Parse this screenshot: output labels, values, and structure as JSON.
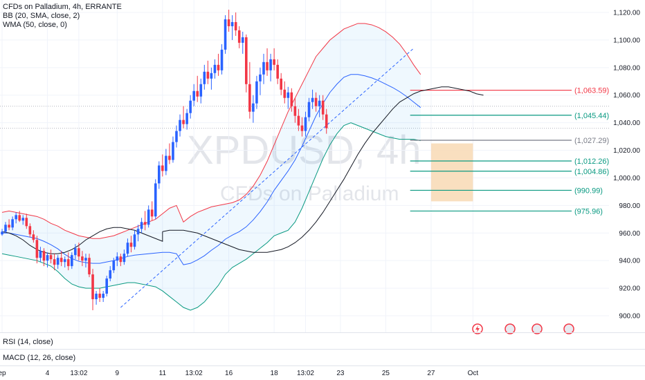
{
  "header": {
    "symbol_line": "CFDs on Palladium, 4h, ERRANTE",
    "bb_line": "BB (20, SMA, close, 2)",
    "wma_line": "WMA (50, close, 0)"
  },
  "watermark": {
    "symbol": "XPDUSD, 4h",
    "name": "CFDs on Palladium"
  },
  "panes": {
    "rsi_label": "RSI (14, close)",
    "macd_label": "MACD (12, 26, close)"
  },
  "colors": {
    "up": "#2962ff",
    "down": "#f23645",
    "bb_upper": "#f23645",
    "bb_lower": "#089981",
    "bb_basis": "#2962ff",
    "wma": "#131722",
    "fill": "#2196f3",
    "box": "#f8d9b4"
  },
  "chart_data": {
    "type": "candlestick",
    "title": "CFDs on Palladium, 4h, ERRANTE",
    "ylim": [
      895,
      1125
    ],
    "y_ticks": [
      900,
      920,
      940,
      960,
      980,
      1000,
      1020,
      1040,
      1060,
      1080,
      1100,
      1120
    ],
    "y_tick_labels": [
      "900.00",
      "920.00",
      "940.00",
      "960.00",
      "980.00",
      "1,000.00",
      "1,020.00",
      "1,040.00",
      "1,060.00",
      "1,080.00",
      "1,100.00",
      "1,120.00"
    ],
    "x_labels": [
      {
        "label": "ep",
        "bar": 0
      },
      {
        "label": "4",
        "bar": 13
      },
      {
        "label": "13:02",
        "bar": 22
      },
      {
        "label": "9",
        "bar": 33
      },
      {
        "label": "11",
        "bar": 46
      },
      {
        "label": "13:02",
        "bar": 55
      },
      {
        "label": "16",
        "bar": 65
      },
      {
        "label": "18",
        "bar": 78
      },
      {
        "label": "13:02",
        "bar": 87
      },
      {
        "label": "23",
        "bar": 97
      },
      {
        "label": "25",
        "bar": 110
      },
      {
        "label": "27",
        "bar": 123
      },
      {
        "label": "Oct",
        "bar": 135
      }
    ],
    "candles": [
      [
        959,
        963,
        958,
        961
      ],
      [
        961,
        968,
        960,
        966
      ],
      [
        966,
        970,
        962,
        964
      ],
      [
        964,
        972,
        962,
        970
      ],
      [
        970,
        975,
        967,
        973
      ],
      [
        973,
        976,
        968,
        969
      ],
      [
        969,
        973,
        966,
        971
      ],
      [
        971,
        974,
        963,
        965
      ],
      [
        965,
        967,
        957,
        959
      ],
      [
        959,
        962,
        953,
        955
      ],
      [
        955,
        958,
        938,
        942
      ],
      [
        942,
        950,
        939,
        947
      ],
      [
        947,
        949,
        936,
        940
      ],
      [
        940,
        946,
        935,
        944
      ],
      [
        944,
        948,
        938,
        941
      ],
      [
        941,
        945,
        933,
        937
      ],
      [
        937,
        944,
        934,
        942
      ],
      [
        942,
        947,
        936,
        939
      ],
      [
        939,
        943,
        935,
        941
      ],
      [
        941,
        946,
        933,
        936
      ],
      [
        936,
        946,
        934,
        944
      ],
      [
        944,
        952,
        941,
        949
      ],
      [
        949,
        953,
        940,
        943
      ],
      [
        943,
        947,
        936,
        940
      ],
      [
        940,
        945,
        935,
        942
      ],
      [
        942,
        945,
        928,
        930
      ],
      [
        930,
        934,
        904,
        912
      ],
      [
        912,
        918,
        908,
        916
      ],
      [
        916,
        920,
        910,
        913
      ],
      [
        913,
        918,
        910,
        916
      ],
      [
        916,
        929,
        914,
        927
      ],
      [
        927,
        936,
        925,
        933
      ],
      [
        933,
        942,
        931,
        940
      ],
      [
        940,
        946,
        936,
        943
      ],
      [
        943,
        945,
        936,
        939
      ],
      [
        939,
        948,
        937,
        945
      ],
      [
        945,
        956,
        943,
        953
      ],
      [
        953,
        958,
        946,
        950
      ],
      [
        950,
        962,
        948,
        959
      ],
      [
        959,
        966,
        954,
        963
      ],
      [
        963,
        971,
        960,
        968
      ],
      [
        968,
        976,
        962,
        966
      ],
      [
        966,
        980,
        964,
        977
      ],
      [
        977,
        983,
        969,
        972
      ],
      [
        972,
        999,
        970,
        996
      ],
      [
        996,
        1012,
        992,
        1009
      ],
      [
        1009,
        1017,
        1001,
        1005
      ],
      [
        1005,
        1021,
        1002,
        1016
      ],
      [
        1016,
        1025,
        1010,
        1013
      ],
      [
        1013,
        1030,
        1011,
        1026
      ],
      [
        1026,
        1038,
        1022,
        1034
      ],
      [
        1034,
        1046,
        1030,
        1042
      ],
      [
        1042,
        1052,
        1036,
        1039
      ],
      [
        1039,
        1050,
        1035,
        1047
      ],
      [
        1047,
        1060,
        1043,
        1056
      ],
      [
        1056,
        1068,
        1052,
        1063
      ],
      [
        1063,
        1074,
        1055,
        1059
      ],
      [
        1059,
        1072,
        1054,
        1068
      ],
      [
        1068,
        1082,
        1064,
        1077
      ],
      [
        1077,
        1085,
        1068,
        1072
      ],
      [
        1072,
        1080,
        1064,
        1076
      ],
      [
        1076,
        1086,
        1072,
        1082
      ],
      [
        1082,
        1090,
        1074,
        1078
      ],
      [
        1078,
        1097,
        1075,
        1093
      ],
      [
        1093,
        1118,
        1090,
        1115
      ],
      [
        1115,
        1122,
        1106,
        1110
      ],
      [
        1110,
        1118,
        1100,
        1113
      ],
      [
        1113,
        1120,
        1103,
        1107
      ],
      [
        1107,
        1110,
        1094,
        1098
      ],
      [
        1098,
        1106,
        1090,
        1102
      ],
      [
        1102,
        1104,
        1062,
        1068
      ],
      [
        1068,
        1084,
        1043,
        1048
      ],
      [
        1048,
        1060,
        1040,
        1054
      ],
      [
        1054,
        1074,
        1050,
        1070
      ],
      [
        1070,
        1080,
        1060,
        1075
      ],
      [
        1075,
        1090,
        1068,
        1084
      ],
      [
        1084,
        1094,
        1074,
        1078
      ],
      [
        1078,
        1090,
        1070,
        1086
      ],
      [
        1086,
        1094,
        1078,
        1082
      ],
      [
        1082,
        1086,
        1068,
        1072
      ],
      [
        1072,
        1076,
        1060,
        1064
      ],
      [
        1064,
        1070,
        1054,
        1058
      ],
      [
        1058,
        1066,
        1050,
        1062
      ],
      [
        1062,
        1065,
        1048,
        1052
      ],
      [
        1052,
        1058,
        1040,
        1045
      ],
      [
        1045,
        1050,
        1034,
        1038
      ],
      [
        1038,
        1044,
        1030,
        1034
      ],
      [
        1034,
        1048,
        1030,
        1044
      ],
      [
        1044,
        1058,
        1041,
        1055
      ],
      [
        1055,
        1064,
        1050,
        1058
      ],
      [
        1058,
        1062,
        1048,
        1052
      ],
      [
        1052,
        1060,
        1044,
        1056
      ],
      [
        1056,
        1060,
        1042,
        1046
      ],
      [
        1046,
        1050,
        1032,
        1036
      ]
    ],
    "upper_band": [
      975,
      976,
      975,
      974,
      973,
      972,
      970,
      967,
      965,
      962,
      960,
      958,
      957,
      956,
      956,
      957,
      958,
      960,
      962,
      964,
      966,
      968,
      970,
      974,
      978,
      980,
      968,
      972,
      975,
      977,
      979,
      980,
      981,
      982,
      984,
      988,
      994,
      1002,
      1012,
      1024,
      1036,
      1048,
      1058,
      1068,
      1078,
      1088,
      1094,
      1100,
      1104,
      1108,
      1110,
      1112,
      1112,
      1111,
      1109,
      1106,
      1102,
      1097,
      1090,
      1082,
      1075
    ],
    "lower_band": [
      945,
      944,
      943,
      942,
      941,
      940,
      938,
      936,
      932,
      927,
      923,
      921,
      920,
      920,
      920,
      921,
      922,
      923,
      924,
      924,
      923,
      922,
      921,
      918,
      914,
      910,
      906,
      904,
      906,
      910,
      916,
      922,
      930,
      935,
      938,
      941,
      945,
      949,
      953,
      958,
      960,
      962,
      968,
      978,
      990,
      1002,
      1014,
      1024,
      1032,
      1038,
      1040,
      1038,
      1036,
      1034,
      1032,
      1030,
      1029,
      1028,
      1028,
      1028,
      1027
    ],
    "band_start_bar": 0,
    "band_step": 2,
    "wma": [
      961,
      962,
      962,
      962,
      961,
      960,
      958,
      956,
      954,
      952,
      950,
      948,
      947,
      946,
      946,
      946,
      947,
      948,
      950,
      953,
      957,
      962,
      968,
      975,
      983,
      991,
      999,
      1008,
      1017,
      1025,
      1032,
      1038,
      1044,
      1050,
      1055,
      1058,
      1061,
      1063,
      1064,
      1065,
      1066,
      1066,
      1065,
      1064,
      1063,
      1061,
      1060
    ],
    "wma_start_bar": 46,
    "trendline": {
      "from": {
        "bar": 34,
        "price": 906
      },
      "to": {
        "bar": 118,
        "price": 1094
      }
    },
    "levels": [
      {
        "value": 1063.59,
        "label": "(1,063.59)",
        "color": "#f23645"
      },
      {
        "value": 1045.44,
        "label": "(1,045.44)",
        "color": "#089981"
      },
      {
        "value": 1027.29,
        "label": "(1,027.29)",
        "color": "#787b86"
      },
      {
        "value": 1012.26,
        "label": "(1,012.26)",
        "color": "#089981"
      },
      {
        "value": 1004.86,
        "label": "(1,004.86)",
        "color": "#089981"
      },
      {
        "value": 990.99,
        "label": "(990.99)",
        "color": "#089981"
      },
      {
        "value": 975.96,
        "label": "(975.96)",
        "color": "#089981"
      }
    ],
    "target_zone": {
      "from_bar": 123,
      "to_bar": 135,
      "top": 1025,
      "bottom": 983
    }
  }
}
